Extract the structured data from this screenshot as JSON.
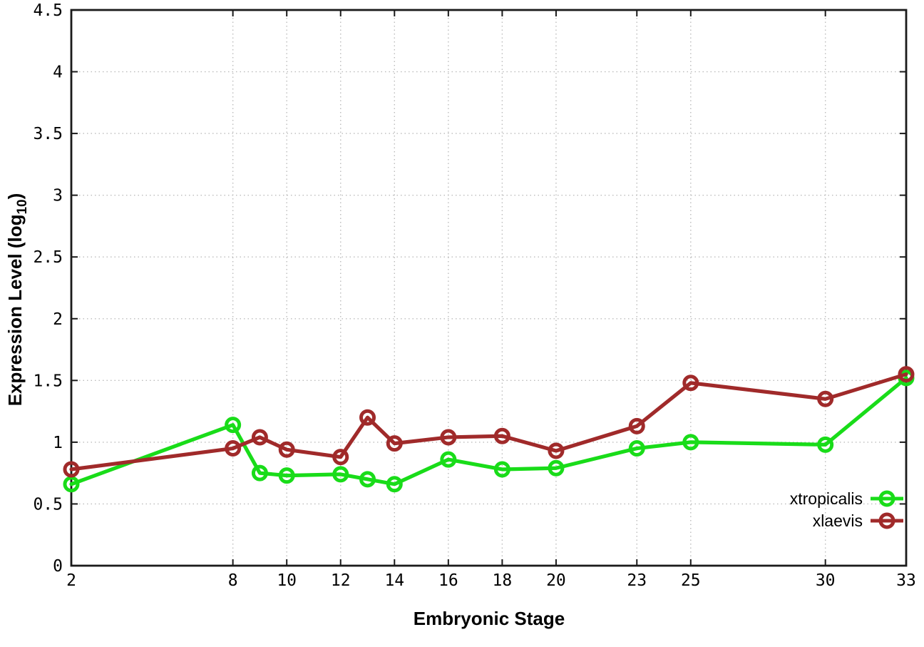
{
  "chart_data": {
    "type": "line",
    "xlabel": "Embryonic Stage",
    "ylabel": "Expression Level (log10)",
    "ylabel_main": "Expression Level (log",
    "ylabel_sub": "10",
    "ylabel_end": ")",
    "x": [
      2,
      8,
      9,
      10,
      12,
      13,
      14,
      16,
      18,
      20,
      23,
      25,
      30,
      33
    ],
    "series": [
      {
        "name": "xtropicalis",
        "color": "#19dc19",
        "values": [
          0.66,
          1.14,
          0.75,
          0.73,
          0.74,
          0.7,
          0.66,
          0.86,
          0.78,
          0.79,
          0.95,
          1.0,
          0.98,
          1.52
        ]
      },
      {
        "name": "xlaevis",
        "color": "#a02a2a",
        "values": [
          0.78,
          0.95,
          1.04,
          0.94,
          0.88,
          1.2,
          0.99,
          1.04,
          1.05,
          0.93,
          1.13,
          1.48,
          1.35,
          1.55
        ]
      }
    ],
    "xlim": [
      2,
      33
    ],
    "ylim": [
      0,
      4.5
    ],
    "xticks": [
      2,
      8,
      10,
      12,
      14,
      16,
      18,
      20,
      23,
      25,
      30,
      33
    ],
    "xtick_labels": [
      "2",
      "8",
      "10",
      "12",
      "14",
      "16",
      "18",
      "20",
      "23",
      "25",
      "30",
      "33"
    ],
    "yticks": [
      0,
      0.5,
      1,
      1.5,
      2,
      2.5,
      3,
      3.5,
      4,
      4.5
    ],
    "ytick_labels": [
      "0",
      "0.5",
      "1",
      "1.5",
      "2",
      "2.5",
      "3",
      "3.5",
      "4",
      "4.5"
    ],
    "grid": true,
    "legend": {
      "position": "inside-bottom-right",
      "entries": [
        "xtropicalis",
        "xlaevis"
      ]
    },
    "styles": {
      "background": "#ffffff",
      "grid_color": "#bcbcbc",
      "border_color": "#1a1a1a",
      "text_color": "#000000"
    }
  }
}
